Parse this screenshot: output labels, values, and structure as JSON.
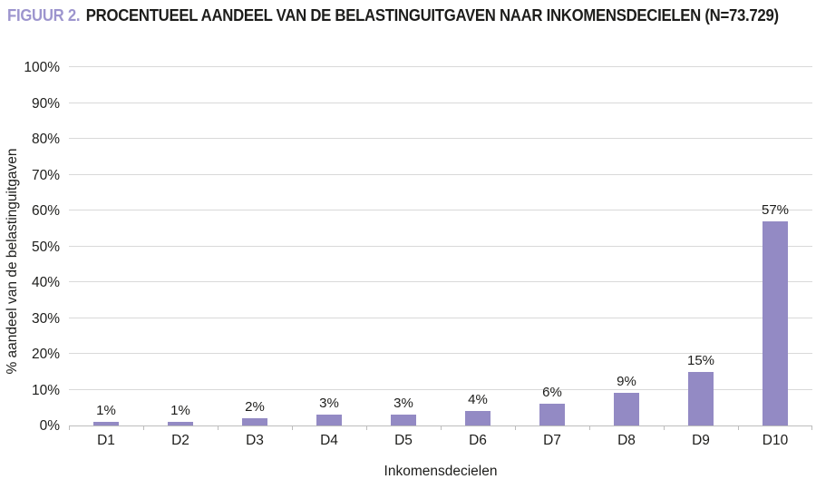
{
  "title": {
    "prefix": "FIGUUR 2.",
    "caption": "PROCENTUEEL AANDEEL VAN DE BELASTINGUITGAVEN NAAR INKOMENSDECIELEN (N=73.729)"
  },
  "chart_data": {
    "type": "bar",
    "title": "FIGUUR 2. PROCENTUEEL AANDEEL VAN DE BELASTINGUITGAVEN NAAR INKOMENSDECIELEN (N=73.729)",
    "categories": [
      "D1",
      "D2",
      "D3",
      "D4",
      "D5",
      "D6",
      "D7",
      "D8",
      "D9",
      "D10"
    ],
    "values": [
      1,
      1,
      2,
      3,
      3,
      4,
      6,
      9,
      15,
      57
    ],
    "bar_labels": [
      "1%",
      "1%",
      "2%",
      "3%",
      "3%",
      "4%",
      "6%",
      "9%",
      "15%",
      "57%"
    ],
    "xlabel": "Inkomensdecielen",
    "ylabel": "% aandeel van de belastinguitgaven",
    "ylim": [
      0,
      100
    ],
    "ytick_step": 10,
    "ytick_labels": [
      "0%",
      "10%",
      "20%",
      "30%",
      "40%",
      "50%",
      "60%",
      "70%",
      "80%",
      "90%",
      "100%"
    ],
    "grid": "horizontal",
    "legend": "none"
  },
  "colors": {
    "accent": "#9d95ce",
    "bar": "#938ac4",
    "grid": "#d9d9d9",
    "axis": "#bdbdbd",
    "text": "#1d1d1b"
  }
}
